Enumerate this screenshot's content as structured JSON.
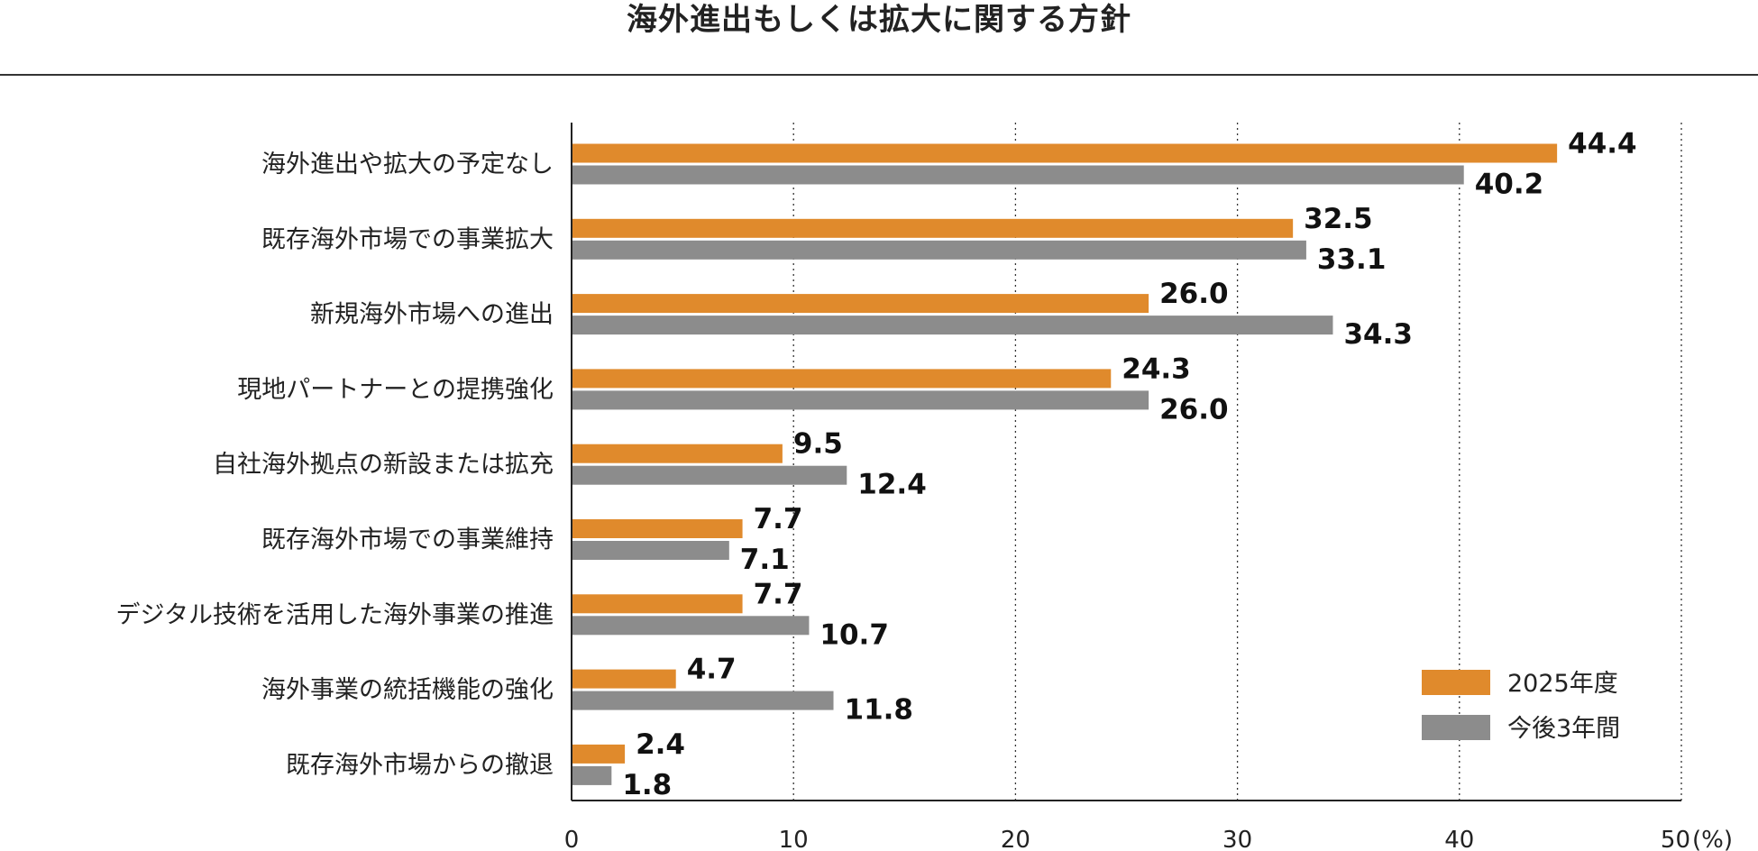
{
  "chart_data": {
    "type": "bar",
    "orientation": "horizontal",
    "title": "海外進出もしくは拡大に関する方針",
    "categories": [
      "海外進出や拡大の予定なし",
      "既存海外市場での事業拡大",
      "新規海外市場への進出",
      "現地パートナーとの提携強化",
      "自社海外拠点の新設または拡充",
      "既存海外市場での事業維持",
      "デジタル技術を活用した海外事業の推進",
      "海外事業の統括機能の強化",
      "既存海外市場からの撤退"
    ],
    "series": [
      {
        "name": "2025年度",
        "color": "#E08A2C",
        "values": [
          44.4,
          32.5,
          26.0,
          24.3,
          9.5,
          7.7,
          7.7,
          4.7,
          2.4
        ],
        "labels": [
          "44.4",
          "32.5",
          "26.0",
          "24.3",
          "9.5",
          "7.7",
          "7.7",
          "4.7",
          "2.4"
        ]
      },
      {
        "name": "今後3年間",
        "color": "#8C8C8C",
        "values": [
          40.2,
          33.1,
          34.3,
          26.0,
          12.4,
          7.1,
          10.7,
          11.8,
          1.8
        ],
        "labels": [
          "40.2",
          "33.1",
          "34.3",
          "26.0",
          "12.4",
          "7.1",
          "10.7",
          "11.8",
          "1.8"
        ]
      }
    ],
    "xlim": [
      0,
      50
    ],
    "ticks": [
      0,
      10,
      20,
      30,
      40,
      50
    ],
    "tick_labels": [
      "0",
      "10",
      "20",
      "30",
      "40",
      "50"
    ],
    "unit": "(%)",
    "grid": "vertical-dotted",
    "legend_position": "bottom-right"
  }
}
